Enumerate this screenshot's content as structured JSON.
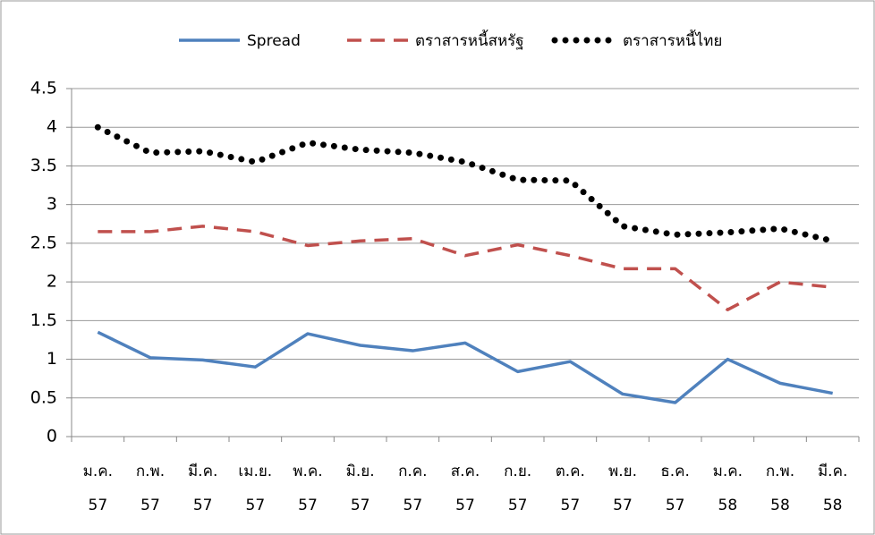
{
  "chart_data": {
    "type": "line",
    "categories": [
      "ม.ค. 57",
      "ก.พ. 57",
      "มี.ค. 57",
      "เม.ย. 57",
      "พ.ค. 57",
      "มิ.ย. 57",
      "ก.ค. 57",
      "ส.ค. 57",
      "ก.ย. 57",
      "ต.ค. 57",
      "พ.ย. 57",
      "ธ.ค. 57",
      "ม.ค. 58",
      "ก.พ. 58",
      "มี.ค. 58"
    ],
    "series": [
      {
        "name": "Spread",
        "color": "#4f81bd",
        "style": "solid",
        "values": [
          1.35,
          1.02,
          0.99,
          0.9,
          1.33,
          1.18,
          1.11,
          1.21,
          0.84,
          0.97,
          0.55,
          0.44,
          1.0,
          0.69,
          0.56
        ]
      },
      {
        "name": "ตราสารหนี้สหรัฐ",
        "color": "#c0504d",
        "style": "dashed",
        "values": [
          2.65,
          2.65,
          2.72,
          2.65,
          2.47,
          2.53,
          2.56,
          2.34,
          2.48,
          2.34,
          2.17,
          2.17,
          1.64,
          2.0,
          1.93
        ]
      },
      {
        "name": "ตราสารหนี้ไทย",
        "color": "#000000",
        "style": "dotted",
        "values": [
          4.0,
          3.67,
          3.69,
          3.55,
          3.8,
          3.71,
          3.67,
          3.55,
          3.32,
          3.31,
          2.72,
          2.61,
          2.64,
          2.69,
          2.53
        ]
      }
    ],
    "ylim": [
      0,
      4.5
    ],
    "yticks": [
      0,
      0.5,
      1,
      1.5,
      2,
      2.5,
      3,
      3.5,
      4,
      4.5
    ],
    "grid": true,
    "legend": "top"
  }
}
